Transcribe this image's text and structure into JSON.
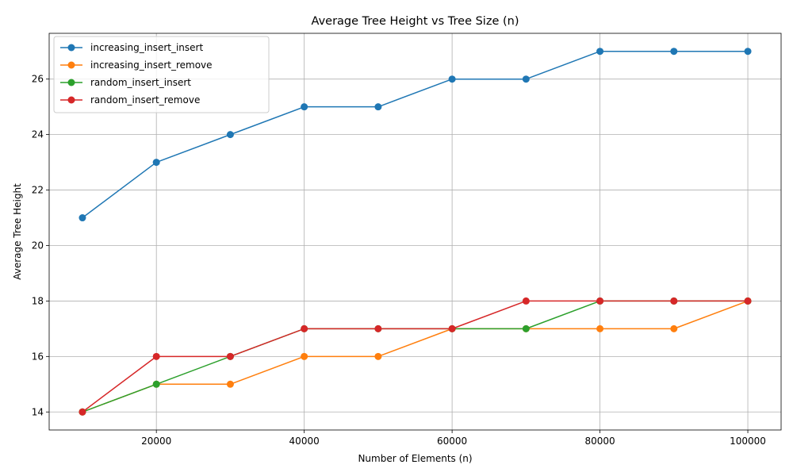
{
  "chart_data": {
    "type": "line",
    "title": "Average Tree Height vs Tree Size (n)",
    "xlabel": "Number of Elements (n)",
    "ylabel": "Average Tree Height",
    "x": [
      10000,
      20000,
      30000,
      40000,
      50000,
      60000,
      70000,
      80000,
      90000,
      100000
    ],
    "xlim": [
      5500,
      104500
    ],
    "ylim": [
      13.35,
      27.65
    ],
    "xticks": [
      20000,
      40000,
      60000,
      80000,
      100000
    ],
    "yticks": [
      14,
      16,
      18,
      20,
      22,
      24,
      26
    ],
    "xtick_labels": [
      "20000",
      "40000",
      "60000",
      "80000",
      "100000"
    ],
    "ytick_labels": [
      "14",
      "16",
      "18",
      "20",
      "22",
      "24",
      "26"
    ],
    "grid": true,
    "legend_position": "top-left",
    "series": [
      {
        "name": "increasing_insert_insert",
        "color": "#1f77b4",
        "values": [
          21,
          23,
          24,
          25,
          25,
          26,
          26,
          27,
          27,
          27
        ]
      },
      {
        "name": "increasing_insert_remove",
        "color": "#ff7f0e",
        "values": [
          14,
          15,
          15,
          16,
          16,
          17,
          17,
          17,
          17,
          18
        ]
      },
      {
        "name": "random_insert_insert",
        "color": "#2ca02c",
        "values": [
          14,
          15,
          16,
          17,
          17,
          17,
          17,
          18,
          18,
          18
        ]
      },
      {
        "name": "random_insert_remove",
        "color": "#d62728",
        "values": [
          14,
          16,
          16,
          17,
          17,
          17,
          18,
          18,
          18,
          18
        ]
      }
    ]
  }
}
